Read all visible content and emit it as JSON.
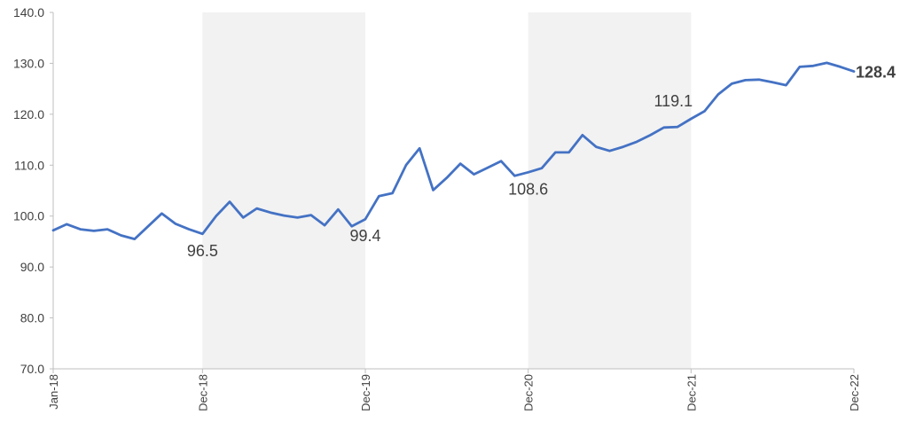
{
  "chart_data": {
    "type": "line",
    "title": "",
    "xlabel": "",
    "ylabel": "",
    "ylim": [
      70,
      140
    ],
    "y_ticks": [
      "70.0",
      "80.0",
      "90.0",
      "100.0",
      "110.0",
      "120.0",
      "130.0",
      "140.0"
    ],
    "x_tick_labels": [
      {
        "label": "Jan-18",
        "index": 0
      },
      {
        "label": "Dec-18",
        "index": 11
      },
      {
        "label": "Dec-19",
        "index": 23
      },
      {
        "label": "Dec-20",
        "index": 35
      },
      {
        "label": "Dec-21",
        "index": 47
      },
      {
        "label": "Dec-22",
        "index": 59
      }
    ],
    "shaded_periods": [
      {
        "start_index": 11,
        "end_index": 23
      },
      {
        "start_index": 35,
        "end_index": 47
      }
    ],
    "colors": {
      "line": "#4472c4",
      "shade": "#f2f2f2",
      "axis": "#bfbfbf"
    },
    "series": [
      {
        "values": [
          97.2,
          98.4,
          97.4,
          97.1,
          97.4,
          96.2,
          95.5,
          98.0,
          100.5,
          98.5,
          97.4,
          96.5,
          100.0,
          102.8,
          99.7,
          101.5,
          100.7,
          100.1,
          99.7,
          100.2,
          98.2,
          101.3,
          98.0,
          99.4,
          103.9,
          104.5,
          110.0,
          113.3,
          105.1,
          107.5,
          110.3,
          108.2,
          109.5,
          110.8,
          107.9,
          108.6,
          109.4,
          112.5,
          112.5,
          115.9,
          113.6,
          112.8,
          113.6,
          114.6,
          115.9,
          117.4,
          117.5,
          119.1,
          120.6,
          123.9,
          126.0,
          126.7,
          126.8,
          126.3,
          125.7,
          129.3,
          129.5,
          130.1,
          129.3,
          128.4
        ]
      }
    ],
    "data_labels": [
      {
        "index": 11,
        "text": "96.5",
        "position": "below",
        "bold": false
      },
      {
        "index": 23,
        "text": "99.4",
        "position": "below",
        "bold": false
      },
      {
        "index": 35,
        "text": "108.6",
        "position": "below",
        "bold": false
      },
      {
        "index": 47,
        "text": "119.1",
        "position": "above-left",
        "bold": false
      },
      {
        "index": 59,
        "text": "128.4",
        "position": "right",
        "bold": true
      }
    ]
  }
}
